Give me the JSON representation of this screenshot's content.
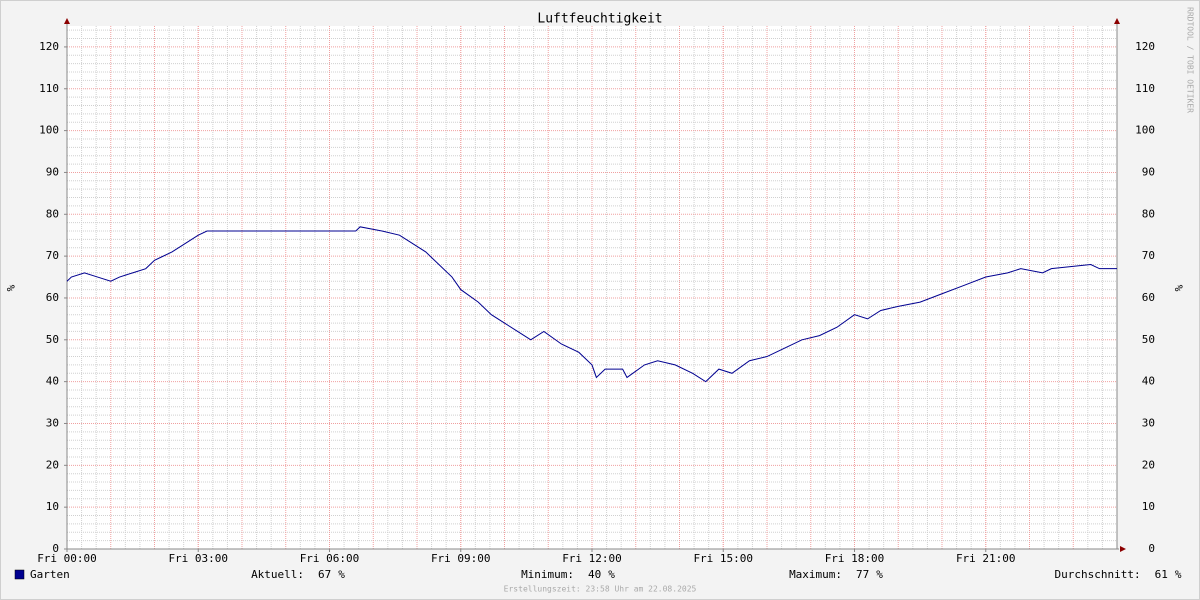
{
  "chart_data": {
    "type": "line",
    "title": "Luftfeuchtigkeit",
    "y_label": "%",
    "y2_label": "%",
    "watermark": "RRDTOOL / TOBI OETIKER",
    "footer": "Erstellungszeit: 23:58 Uhr am 22.08.2025",
    "xlim": [
      0,
      24
    ],
    "xticks": [
      {
        "value": 0,
        "label": "Fri 00:00"
      },
      {
        "value": 3,
        "label": "Fri 03:00"
      },
      {
        "value": 6,
        "label": "Fri 06:00"
      },
      {
        "value": 9,
        "label": "Fri 09:00"
      },
      {
        "value": 12,
        "label": "Fri 12:00"
      },
      {
        "value": 15,
        "label": "Fri 15:00"
      },
      {
        "value": 18,
        "label": "Fri 18:00"
      },
      {
        "value": 21,
        "label": "Fri 21:00"
      }
    ],
    "ylim": [
      0,
      125
    ],
    "yticks": [
      0,
      10,
      20,
      30,
      40,
      50,
      60,
      70,
      80,
      90,
      100,
      110,
      120
    ],
    "grid": true,
    "series": [
      {
        "name": "Garten",
        "color": "#000090",
        "x": [
          0,
          0.1,
          0.4,
          0.7,
          1.0,
          1.2,
          1.5,
          1.8,
          2.0,
          2.2,
          2.4,
          2.7,
          3.0,
          3.2,
          6.6,
          6.7,
          7.2,
          7.6,
          7.9,
          8.2,
          8.5,
          8.8,
          9.0,
          9.4,
          9.7,
          10.0,
          10.3,
          10.6,
          10.9,
          11.3,
          11.7,
          12.0,
          12.1,
          12.3,
          12.7,
          12.8,
          13.2,
          13.5,
          13.9,
          14.3,
          14.6,
          14.9,
          15.2,
          15.6,
          16.0,
          16.4,
          16.8,
          17.2,
          17.6,
          18.0,
          18.3,
          18.6,
          19.0,
          19.5,
          20.0,
          20.5,
          21.0,
          21.5,
          21.8,
          22.3,
          22.5,
          23.4,
          23.6,
          24.0
        ],
        "values": [
          64,
          65,
          66,
          65,
          64,
          65,
          66,
          67,
          69,
          70,
          71,
          73,
          75,
          76,
          76,
          77,
          76,
          75,
          73,
          71,
          68,
          65,
          62,
          59,
          56,
          54,
          52,
          50,
          52,
          49,
          47,
          44,
          41,
          43,
          43,
          41,
          44,
          45,
          44,
          42,
          40,
          43,
          42,
          45,
          46,
          48,
          50,
          51,
          53,
          56,
          55,
          57,
          58,
          59,
          61,
          63,
          65,
          66,
          67,
          66,
          67,
          68,
          67,
          67
        ]
      }
    ],
    "stats": [
      {
        "label": "Aktuell:",
        "value": 67,
        "unit": "%"
      },
      {
        "label": "Minimum:",
        "value": 40,
        "unit": "%"
      },
      {
        "label": "Maximum:",
        "value": 77,
        "unit": "%"
      },
      {
        "label": "Durchschnitt:",
        "value": 61,
        "unit": "%"
      }
    ]
  }
}
